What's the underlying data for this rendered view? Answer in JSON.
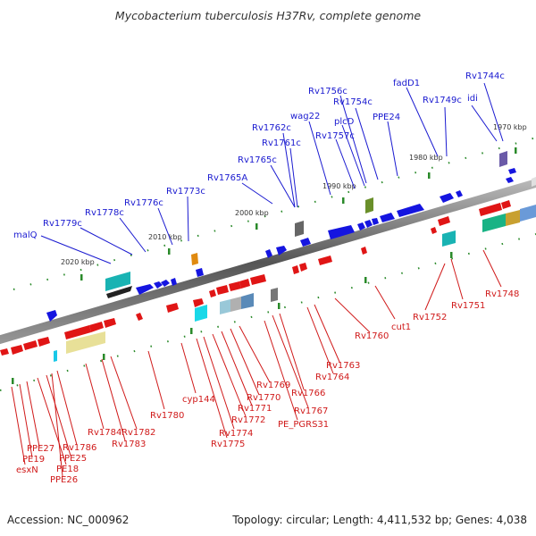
{
  "title": "Mycobacterium tuberculosis H37Rv, complete genome",
  "footer": {
    "accession": "Accession: NC_000962",
    "summary": "Topology: circular; Length: 4,411,532 bp; Genes: 4,038"
  },
  "ticks": [
    {
      "text": "2020 kbp"
    },
    {
      "text": "2010 kbp"
    },
    {
      "text": "2000 kbp"
    },
    {
      "text": "1990 kbp"
    },
    {
      "text": "1980 kbp"
    },
    {
      "text": "1970 kbp"
    }
  ],
  "forward_labels": [
    "malQ",
    "Rv1779c",
    "Rv1778c",
    "Rv1776c",
    "Rv1773c",
    "Rv1765A",
    "Rv1765c",
    "Rv1762c",
    "Rv1761c",
    "wag22",
    "Rv1757c",
    "Rv1756c",
    "plcD",
    "Rv1754c",
    "PPE24",
    "fadD1",
    "Rv1749c",
    "idi",
    "Rv1744c"
  ],
  "reverse_labels": [
    "esxN",
    "PE19",
    "PPE27",
    "PE18",
    "PPE25",
    "PPE26",
    "Rv1786",
    "Rv1784",
    "Rv1783",
    "Rv1782",
    "Rv1780",
    "cyp144",
    "Rv1775",
    "Rv1774",
    "Rv1772",
    "Rv1771",
    "Rv1770",
    "Rv1769",
    "PE_PGRS31",
    "Rv1767",
    "Rv1766",
    "Rv1764",
    "Rv1763",
    "Rv1760",
    "cut1",
    "Rv1752",
    "Rv1751",
    "Rv1748"
  ],
  "colors": {
    "forward": "#1a1ad0",
    "reverse": "#d01a1a"
  }
}
